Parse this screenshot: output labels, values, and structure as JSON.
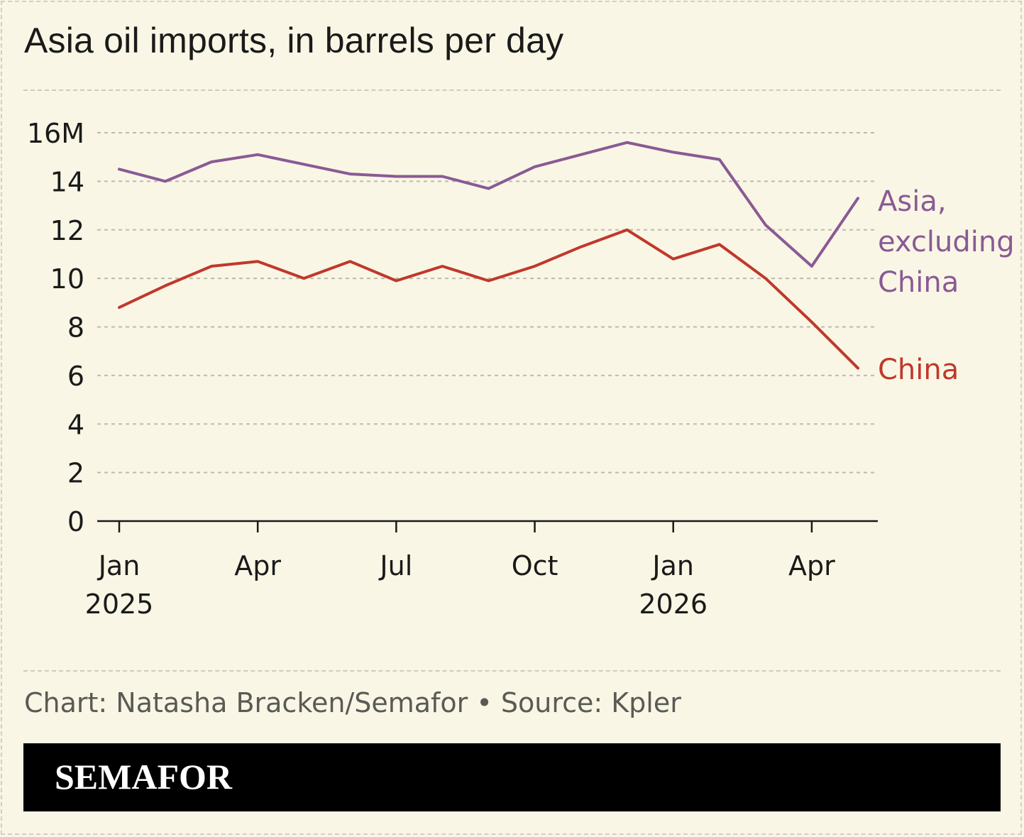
{
  "title": "Asia oil imports, in barrels per day",
  "credit": "Chart: Natasha Bracken/Semafor • Source: Kpler",
  "brand": "SEMAFOR",
  "colors": {
    "background": "#f9f6e5",
    "asia_ex_china": "#8a5a94",
    "china": "#c0382b",
    "grid": "#bdbab0",
    "axis": "#1a1a1a"
  },
  "chart_data": {
    "type": "line",
    "title": "Asia oil imports, in barrels per day",
    "ylim": [
      0,
      16
    ],
    "y_ticks": [
      "0",
      "2",
      "4",
      "6",
      "8",
      "10",
      "12",
      "14",
      "16M"
    ],
    "x_ticks": [
      {
        "month": "Jan",
        "year": "2025"
      },
      {
        "month": "Apr",
        "year": ""
      },
      {
        "month": "Jul",
        "year": ""
      },
      {
        "month": "Oct",
        "year": ""
      },
      {
        "month": "Jan",
        "year": "2026"
      },
      {
        "month": "Apr",
        "year": ""
      }
    ],
    "x": [
      "2025-01",
      "2025-02",
      "2025-03",
      "2025-04",
      "2025-05",
      "2025-06",
      "2025-07",
      "2025-08",
      "2025-09",
      "2025-10",
      "2025-11",
      "2025-12",
      "2026-01",
      "2026-02",
      "2026-03",
      "2026-04",
      "2026-05"
    ],
    "grid": true,
    "series": [
      {
        "name": "Asia, excluding China",
        "label_lines": [
          "Asia,",
          "excluding",
          "China"
        ],
        "color": "#8a5a94",
        "values": [
          14.5,
          14.0,
          14.8,
          15.1,
          14.7,
          14.3,
          14.2,
          14.2,
          13.7,
          14.6,
          15.1,
          15.6,
          15.2,
          14.9,
          12.2,
          10.5,
          13.3
        ]
      },
      {
        "name": "China",
        "label_lines": [
          "China"
        ],
        "color": "#c0382b",
        "values": [
          8.8,
          9.7,
          10.5,
          10.7,
          10.0,
          10.7,
          9.9,
          10.5,
          9.9,
          10.5,
          11.3,
          12.0,
          10.8,
          11.4,
          10.0,
          8.2,
          6.3
        ]
      }
    ]
  }
}
